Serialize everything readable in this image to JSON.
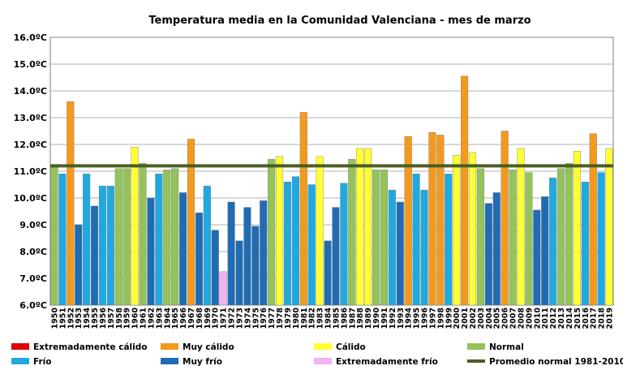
{
  "chart_data": {
    "type": "bar",
    "title": "Temperatura media en la Comunidad Valenciana - mes de marzo",
    "xlabel": "",
    "ylabel": "",
    "ylim": [
      6.0,
      16.0
    ],
    "yticks": [
      "6.0ºC",
      "7.0ºC",
      "8.0ºC",
      "9.0ºC",
      "10.0ºC",
      "11.0ºC",
      "12.0ºC",
      "13.0ºC",
      "14.0ºC",
      "15.0ºC",
      "16.0ºC"
    ],
    "grid": true,
    "legend_position": "bottom",
    "categories": [
      "1950",
      "1951",
      "1952",
      "1953",
      "1954",
      "1955",
      "1956",
      "1957",
      "1958",
      "1959",
      "1960",
      "1961",
      "1962",
      "1963",
      "1964",
      "1965",
      "1966",
      "1967",
      "1968",
      "1969",
      "1970",
      "1971",
      "1972",
      "1973",
      "1974",
      "1975",
      "1976",
      "1977",
      "1978",
      "1979",
      "1980",
      "1981",
      "1982",
      "1983",
      "1984",
      "1985",
      "1986",
      "1987",
      "1988",
      "1989",
      "1990",
      "1991",
      "1992",
      "1993",
      "1994",
      "1995",
      "1996",
      "1997",
      "1998",
      "1999",
      "2000",
      "2001",
      "2002",
      "2003",
      "2004",
      "2005",
      "2006",
      "2007",
      "2008",
      "2009",
      "2010",
      "2011",
      "2012",
      "2013",
      "2014",
      "2015",
      "2016",
      "2017",
      "2018",
      "2019"
    ],
    "values": [
      11.2,
      10.9,
      13.6,
      9.0,
      10.9,
      9.7,
      10.45,
      10.45,
      11.1,
      11.1,
      11.9,
      11.3,
      10.0,
      10.9,
      11.05,
      11.1,
      10.2,
      12.2,
      9.45,
      10.45,
      8.8,
      7.25,
      9.85,
      8.4,
      9.65,
      8.95,
      9.9,
      11.45,
      11.55,
      10.6,
      10.8,
      13.2,
      10.5,
      11.55,
      8.4,
      9.65,
      10.55,
      11.45,
      11.85,
      11.85,
      11.05,
      11.05,
      10.3,
      9.85,
      12.3,
      10.9,
      10.3,
      12.45,
      12.35,
      10.9,
      11.6,
      14.55,
      11.7,
      11.1,
      9.8,
      10.2,
      12.5,
      11.05,
      11.85,
      10.95,
      9.55,
      10.05,
      10.75,
      11.1,
      11.3,
      11.75,
      10.6,
      12.4,
      10.95,
      11.85
    ],
    "classes": [
      "N",
      "F",
      "MC",
      "MF",
      "F",
      "MF",
      "F",
      "F",
      "N",
      "N",
      "C",
      "N",
      "MF",
      "F",
      "N",
      "N",
      "MF",
      "MC",
      "MF",
      "F",
      "MF",
      "EF",
      "MF",
      "MF",
      "MF",
      "MF",
      "MF",
      "N",
      "C",
      "F",
      "F",
      "MC",
      "F",
      "C",
      "MF",
      "MF",
      "F",
      "N",
      "C",
      "C",
      "N",
      "N",
      "F",
      "MF",
      "MC",
      "F",
      "F",
      "MC",
      "MC",
      "F",
      "C",
      "MC",
      "C",
      "N",
      "MF",
      "MF",
      "MC",
      "N",
      "C",
      "N",
      "MF",
      "MF",
      "F",
      "N",
      "N",
      "C",
      "F",
      "MC",
      "F",
      "C"
    ],
    "average_line": {
      "label": "Promedio normal 1981-2010",
      "value": 11.2,
      "color": "#4a5e23"
    },
    "legend": [
      {
        "key": "EC",
        "label": "Extremadamente cálido",
        "color": "#e00000"
      },
      {
        "key": "MC",
        "label": "Muy cálido",
        "color": "#f39a1d"
      },
      {
        "key": "C",
        "label": "Cálido",
        "color": "#ffff33"
      },
      {
        "key": "N",
        "label": "Normal",
        "color": "#93c35a"
      },
      {
        "key": "F",
        "label": "Frío",
        "color": "#1fa9e1"
      },
      {
        "key": "MF",
        "label": "Muy frío",
        "color": "#1f6cb4"
      },
      {
        "key": "EF",
        "label": "Extremadamente frío",
        "color": "#f3b2f0"
      },
      {
        "key": "AVG",
        "label": "Promedio normal 1981-2010",
        "color": "#4a5e23"
      }
    ]
  }
}
